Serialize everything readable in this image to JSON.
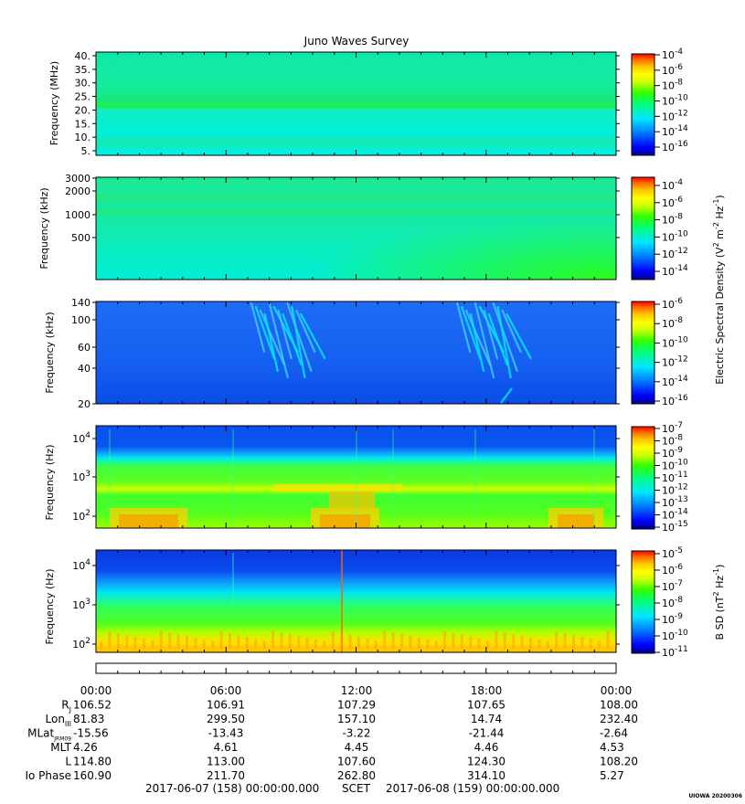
{
  "title": "Juno Waves Survey",
  "version_tag": "UIOWA 20200306",
  "colors": {
    "scale": [
      "#00008b",
      "#0000ff",
      "#0078ff",
      "#00e5ff",
      "#00ff80",
      "#33ff00",
      "#ccff00",
      "#ffff00",
      "#ffc000",
      "#ff6000",
      "#ff0000"
    ]
  },
  "chart_data": [
    {
      "type": "heatmap",
      "panel": "hfr-high",
      "ylabel": "Frequency (MHz)",
      "yticks": [
        "40.",
        "35.",
        "30.",
        "25.",
        "20.",
        "15.",
        "10.",
        "5."
      ],
      "colorbar_ticks": [
        "10^-4",
        "10^-6",
        "10^-8",
        "10^-10",
        "10^-12",
        "10^-14",
        "10^-16"
      ],
      "background_level": 0.42,
      "bands": [
        {
          "freq_MHz": 21,
          "level": 0.5
        },
        {
          "freq_MHz": 9,
          "level": 0.45
        }
      ]
    },
    {
      "type": "heatmap",
      "panel": "hfr-low",
      "ylabel": "Frequency (kHz)",
      "yticks": [
        "3000",
        "2000",
        "1000",
        "500"
      ],
      "colorbar_ticks": [
        "10^-4",
        "10^-6",
        "10^-8",
        "10^-10",
        "10^-12",
        "10^-14"
      ],
      "background_level": 0.42,
      "bands": [
        {
          "freq_kHz": 2400,
          "level": 0.48
        },
        {
          "freq_kHz": 1600,
          "level": 0.47
        },
        {
          "freq_kHz": 1150,
          "level": 0.5
        }
      ]
    },
    {
      "type": "heatmap",
      "panel": "lfr-high",
      "ylabel": "Frequency (kHz)",
      "yticks": [
        "140",
        "100",
        "60",
        "40",
        "20"
      ],
      "colorbar_ticks": [
        "10^-6",
        "10^-8",
        "10^-10",
        "10^-12",
        "10^-14",
        "10^-16"
      ],
      "background_level": 0.22,
      "bursts": [
        {
          "start": "07:00",
          "end": "09:30"
        },
        {
          "start": "16:30",
          "end": "19:00"
        }
      ]
    },
    {
      "type": "heatmap",
      "panel": "lfr-low",
      "ylabel": "Frequency (Hz)",
      "yticks": [
        "10^4",
        "10^3",
        "10^2"
      ],
      "colorbar_ticks": [
        "10^-7",
        "10^-8",
        "10^-9",
        "10^-10",
        "10^-11",
        "10^-12",
        "10^-13",
        "10^-14",
        "10^-15"
      ],
      "colorbar_label": "Electric Spectral Density (V^2 m^-2 Hz^-1)"
    },
    {
      "type": "heatmap",
      "panel": "magnetic",
      "ylabel": "Frequency (Hz)",
      "yticks": [
        "10^4",
        "10^3",
        "10^2"
      ],
      "colorbar_ticks": [
        "10^-5",
        "10^-6",
        "10^-7",
        "10^-8",
        "10^-9",
        "10^-10",
        "10^-11"
      ],
      "colorbar_label": "B SD (nT^2 Hz^-1)"
    }
  ],
  "ephemeris": {
    "times": [
      "00:00",
      "06:00",
      "12:00",
      "18:00",
      "00:00"
    ],
    "rows": [
      {
        "label": "R",
        "sub": "J",
        "values": [
          "106.52",
          "106.91",
          "107.29",
          "107.65",
          "108.00"
        ]
      },
      {
        "label": "Lon",
        "sub": "III",
        "values": [
          "81.83",
          "299.50",
          "157.10",
          "14.74",
          "232.40"
        ]
      },
      {
        "label": "MLat",
        "sub": "JRM09",
        "values": [
          "-15.56",
          "-13.43",
          "-3.22",
          "-21.44",
          "-2.64"
        ]
      },
      {
        "label": "MLT",
        "sub": "",
        "values": [
          "4.26",
          "4.61",
          "4.45",
          "4.46",
          "4.53"
        ]
      },
      {
        "label": "L",
        "sub": "",
        "values": [
          "114.80",
          "113.00",
          "107.60",
          "124.30",
          "108.20"
        ]
      },
      {
        "label": "Io Phase",
        "sub": "",
        "values": [
          "160.90",
          "211.70",
          "262.80",
          "314.10",
          "5.27"
        ]
      }
    ],
    "footer_left": "2017-06-07 (158) 00:00:00.000",
    "footer_mid": "SCET",
    "footer_right": "2017-06-08 (159) 00:00:00.000"
  }
}
